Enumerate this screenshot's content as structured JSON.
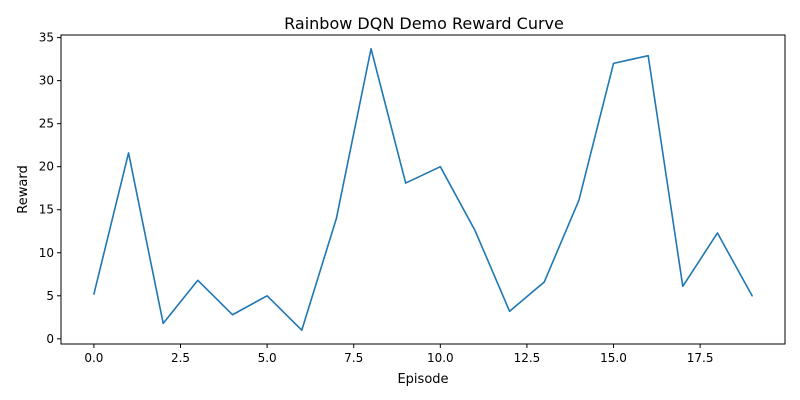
{
  "chart_data": {
    "type": "line",
    "title": "Rainbow DQN Demo Reward Curve",
    "xlabel": "Episode",
    "ylabel": "Reward",
    "x": [
      0,
      1,
      2,
      3,
      4,
      5,
      6,
      7,
      8,
      9,
      10,
      11,
      12,
      13,
      14,
      15,
      16,
      17,
      18,
      19
    ],
    "series": [
      {
        "values": [
          5.2,
          21.6,
          1.8,
          6.8,
          2.8,
          5.0,
          1.0,
          14.0,
          33.7,
          18.1,
          20.0,
          12.6,
          3.2,
          6.6,
          16.1,
          32.0,
          32.9,
          6.1,
          12.3,
          5.0
        ],
        "color": "#1f77b4"
      }
    ],
    "xlim": [
      -0.95,
      19.95
    ],
    "ylim": [
      -0.6,
      35.3
    ],
    "xticks": [
      0.0,
      2.5,
      5.0,
      7.5,
      10.0,
      12.5,
      15.0,
      17.5
    ],
    "xtick_labels": [
      "0.0",
      "2.5",
      "5.0",
      "7.5",
      "10.0",
      "12.5",
      "15.0",
      "17.5"
    ],
    "yticks": [
      0,
      5,
      10,
      15,
      20,
      25,
      30,
      35
    ],
    "ytick_labels": [
      "0",
      "5",
      "10",
      "15",
      "20",
      "25",
      "30",
      "35"
    ],
    "grid": false,
    "legend": "none"
  }
}
